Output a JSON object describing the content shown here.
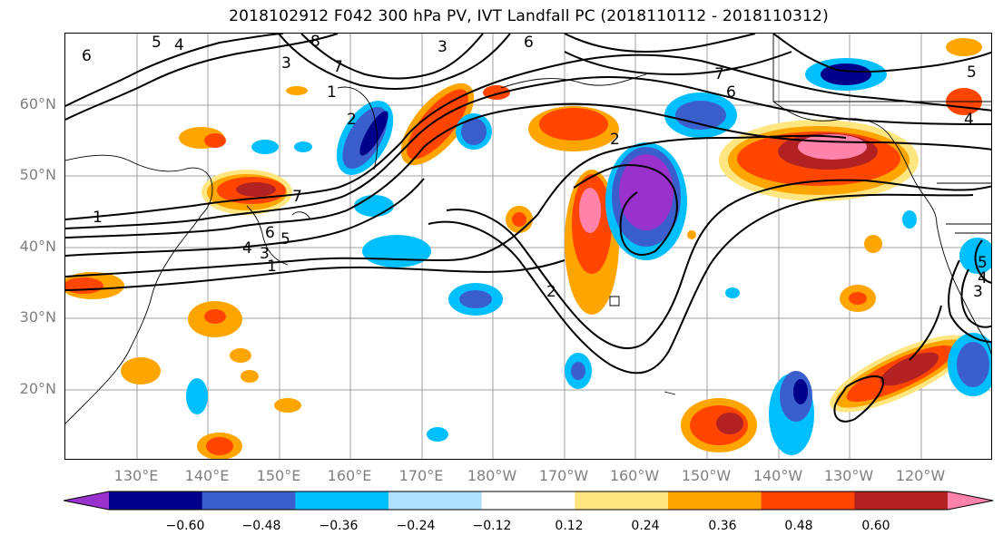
{
  "title": "2018102912 F042 300 hPa PV, IVT Landfall PC (2018110112 - 2018110312)",
  "lat_labels": [
    "60°N",
    "50°N",
    "40°N",
    "30°N",
    "20°N"
  ],
  "lon_labels": [
    "130°E",
    "140°E",
    "150°E",
    "160°E",
    "170°E",
    "180°W",
    "170°W",
    "160°W",
    "150°W",
    "140°W",
    "130°W",
    "120°W"
  ],
  "colorbar": {
    "ticks": [
      "−0.60",
      "−0.48",
      "−0.36",
      "−0.24",
      "−0.12",
      "0.12",
      "0.24",
      "0.36",
      "0.48",
      "0.60"
    ],
    "colors": [
      "#9932cc",
      "#00008b",
      "#3a5fcd",
      "#00bfff",
      "#b0e2ff",
      "#ffffff",
      "#ffe680",
      "#ffa500",
      "#ff4500",
      "#b22222",
      "#ff82ab"
    ]
  },
  "contour_labels": [
    "5",
    "4",
    "6",
    "8",
    "3",
    "1",
    "7",
    "2",
    "6",
    "7",
    "2",
    "1",
    "4",
    "5",
    "6",
    "1",
    "3",
    "2",
    "3",
    "6",
    "4",
    "5",
    "7",
    "5",
    "4",
    "3"
  ]
}
